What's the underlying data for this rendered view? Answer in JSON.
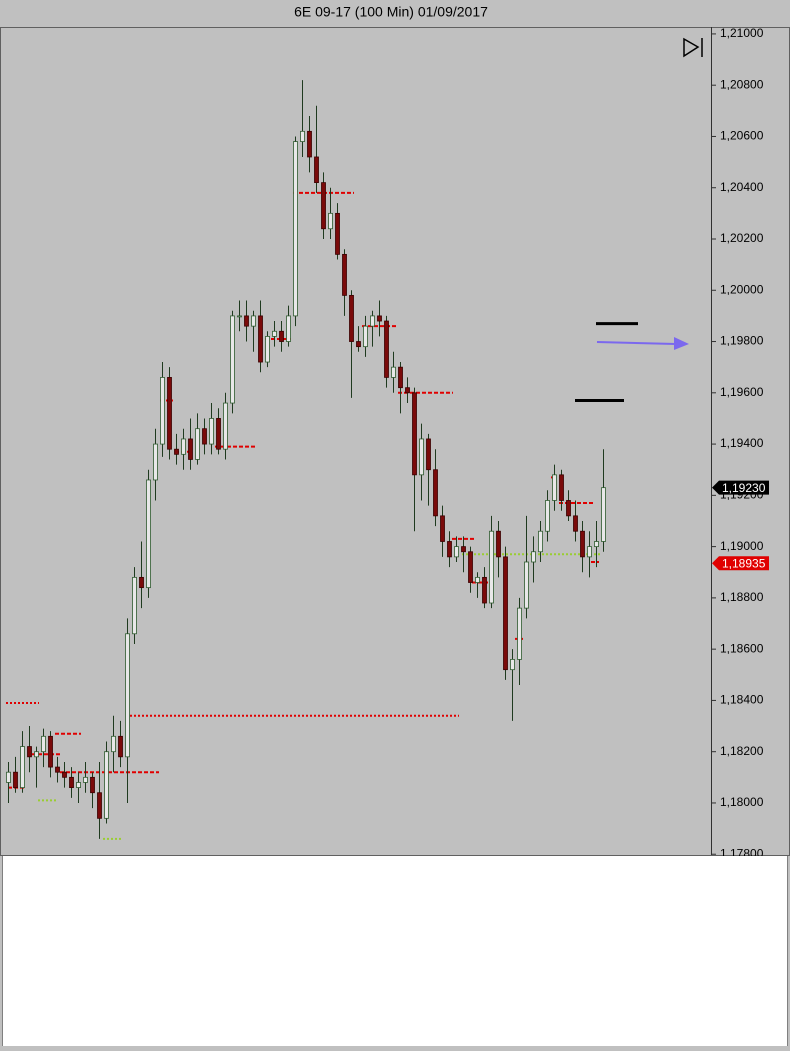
{
  "chart_data": {
    "type": "candlestick",
    "title": "6E 09-17 (100 Min)  01/09/2017",
    "ylim": [
      1.17797,
      1.21027
    ],
    "yticks": [
      {
        "value": 1.178,
        "label": "1,17800"
      },
      {
        "value": 1.18,
        "label": "1,18000"
      },
      {
        "value": 1.182,
        "label": "1,18200"
      },
      {
        "value": 1.184,
        "label": "1,18400"
      },
      {
        "value": 1.186,
        "label": "1,18600"
      },
      {
        "value": 1.188,
        "label": "1,18800"
      },
      {
        "value": 1.19,
        "label": "1,19000"
      },
      {
        "value": 1.192,
        "label": "1,19200"
      },
      {
        "value": 1.194,
        "label": "1,19400"
      },
      {
        "value": 1.196,
        "label": "1,19600"
      },
      {
        "value": 1.198,
        "label": "1,19800"
      },
      {
        "value": 1.2,
        "label": "1,20000"
      },
      {
        "value": 1.202,
        "label": "1,20200"
      },
      {
        "value": 1.204,
        "label": "1,20400"
      },
      {
        "value": 1.206,
        "label": "1,20600"
      },
      {
        "value": 1.208,
        "label": "1,20800"
      },
      {
        "value": 1.21,
        "label": "1,21000"
      }
    ],
    "up_color": "#e8e8e8",
    "down_color": "#7a0a0a",
    "wick_color": "#1f3a1f",
    "ohlc": [
      [
        1.1808,
        1.1816,
        1.18,
        1.1812
      ],
      [
        1.1812,
        1.1818,
        1.1804,
        1.1806
      ],
      [
        1.1806,
        1.1828,
        1.1804,
        1.1822
      ],
      [
        1.1822,
        1.183,
        1.1812,
        1.1818
      ],
      [
        1.1818,
        1.1822,
        1.1806,
        1.182
      ],
      [
        1.182,
        1.1829,
        1.1814,
        1.1826
      ],
      [
        1.1826,
        1.1828,
        1.181,
        1.1814
      ],
      [
        1.1814,
        1.1818,
        1.1808,
        1.1812
      ],
      [
        1.1812,
        1.1816,
        1.1806,
        1.181
      ],
      [
        1.181,
        1.1814,
        1.1802,
        1.1806
      ],
      [
        1.1806,
        1.1812,
        1.18,
        1.1808
      ],
      [
        1.1808,
        1.1816,
        1.1804,
        1.181
      ],
      [
        1.181,
        1.1812,
        1.1798,
        1.1804
      ],
      [
        1.1804,
        1.1816,
        1.1786,
        1.1794
      ],
      [
        1.1794,
        1.1824,
        1.1792,
        1.182
      ],
      [
        1.182,
        1.1834,
        1.1812,
        1.1826
      ],
      [
        1.1826,
        1.1832,
        1.1814,
        1.1818
      ],
      [
        1.1818,
        1.1872,
        1.18,
        1.1866
      ],
      [
        1.1866,
        1.1892,
        1.1862,
        1.1888
      ],
      [
        1.1888,
        1.1902,
        1.1876,
        1.1884
      ],
      [
        1.1884,
        1.193,
        1.188,
        1.1926
      ],
      [
        1.1926,
        1.1946,
        1.1918,
        1.194
      ],
      [
        1.194,
        1.1972,
        1.1935,
        1.1966
      ],
      [
        1.1966,
        1.197,
        1.1934,
        1.1938
      ],
      [
        1.1938,
        1.1944,
        1.1932,
        1.1936
      ],
      [
        1.1936,
        1.1946,
        1.193,
        1.1942
      ],
      [
        1.1942,
        1.195,
        1.193,
        1.1934
      ],
      [
        1.1934,
        1.1952,
        1.1932,
        1.1946
      ],
      [
        1.1946,
        1.195,
        1.1936,
        1.194
      ],
      [
        1.194,
        1.1956,
        1.1936,
        1.195
      ],
      [
        1.195,
        1.1954,
        1.1936,
        1.1938
      ],
      [
        1.1938,
        1.196,
        1.1934,
        1.1956
      ],
      [
        1.1956,
        1.1992,
        1.1952,
        1.199
      ],
      [
        1.199,
        1.1996,
        1.1984,
        1.199
      ],
      [
        1.199,
        1.1996,
        1.198,
        1.1986
      ],
      [
        1.1986,
        1.1992,
        1.1976,
        1.199
      ],
      [
        1.199,
        1.1996,
        1.1968,
        1.1972
      ],
      [
        1.1972,
        1.1984,
        1.197,
        1.1982
      ],
      [
        1.1982,
        1.1988,
        1.1978,
        1.1984
      ],
      [
        1.1984,
        1.1988,
        1.1976,
        1.198
      ],
      [
        1.198,
        1.1994,
        1.1978,
        1.199
      ],
      [
        1.199,
        1.206,
        1.1986,
        1.2058
      ],
      [
        1.2058,
        1.2082,
        1.2052,
        1.2062
      ],
      [
        1.2062,
        1.2068,
        1.2046,
        1.2052
      ],
      [
        1.2052,
        1.2072,
        1.2038,
        1.2042
      ],
      [
        1.2042,
        1.2046,
        1.202,
        1.2024
      ],
      [
        1.2024,
        1.204,
        1.202,
        1.203
      ],
      [
        1.203,
        1.2034,
        1.2012,
        1.2014
      ],
      [
        1.2014,
        1.2016,
        1.199,
        1.1998
      ],
      [
        1.1998,
        1.2,
        1.1958,
        1.198
      ],
      [
        1.198,
        1.1986,
        1.1976,
        1.1978
      ],
      [
        1.1978,
        1.199,
        1.1974,
        1.1986
      ],
      [
        1.1986,
        1.1992,
        1.1978,
        1.199
      ],
      [
        1.199,
        1.1996,
        1.1982,
        1.1988
      ],
      [
        1.1988,
        1.199,
        1.1962,
        1.1966
      ],
      [
        1.1966,
        1.1976,
        1.196,
        1.197
      ],
      [
        1.197,
        1.1972,
        1.1952,
        1.1962
      ],
      [
        1.1962,
        1.1966,
        1.1956,
        1.196
      ],
      [
        1.196,
        1.1962,
        1.1906,
        1.1928
      ],
      [
        1.1928,
        1.1948,
        1.1918,
        1.1942
      ],
      [
        1.1942,
        1.1944,
        1.1916,
        1.193
      ],
      [
        1.193,
        1.1938,
        1.1908,
        1.1912
      ],
      [
        1.1912,
        1.1916,
        1.1896,
        1.1902
      ],
      [
        1.1902,
        1.1906,
        1.1892,
        1.1896
      ],
      [
        1.1896,
        1.1904,
        1.1894,
        1.19
      ],
      [
        1.19,
        1.1904,
        1.189,
        1.1898
      ],
      [
        1.1898,
        1.19,
        1.1882,
        1.1886
      ],
      [
        1.1886,
        1.189,
        1.188,
        1.1888
      ],
      [
        1.1888,
        1.1892,
        1.1876,
        1.1878
      ],
      [
        1.1878,
        1.1912,
        1.1876,
        1.1906
      ],
      [
        1.1906,
        1.191,
        1.1888,
        1.1896
      ],
      [
        1.1896,
        1.19,
        1.1848,
        1.1852
      ],
      [
        1.1852,
        1.186,
        1.1832,
        1.1856
      ],
      [
        1.1856,
        1.188,
        1.1846,
        1.1876
      ],
      [
        1.1876,
        1.1912,
        1.1872,
        1.1894
      ],
      [
        1.1894,
        1.1904,
        1.1886,
        1.1898
      ],
      [
        1.1898,
        1.191,
        1.1894,
        1.1906
      ],
      [
        1.1906,
        1.1922,
        1.1902,
        1.1918
      ],
      [
        1.1918,
        1.1932,
        1.1914,
        1.1928
      ],
      [
        1.1928,
        1.193,
        1.1914,
        1.1918
      ],
      [
        1.1918,
        1.1922,
        1.191,
        1.1912
      ],
      [
        1.1912,
        1.1918,
        1.1902,
        1.1906
      ],
      [
        1.1906,
        1.191,
        1.189,
        1.1896
      ],
      [
        1.1896,
        1.1906,
        1.1888,
        1.19
      ],
      [
        1.19,
        1.191,
        1.1892,
        1.1902
      ],
      [
        1.1902,
        1.1938,
        1.1898,
        1.1923
      ]
    ],
    "levels": [
      {
        "value": 1.2038,
        "style": "dashed",
        "color": "#e00000"
      },
      {
        "value": 1.1981,
        "style": "dashed",
        "color": "#e00000"
      },
      {
        "value": 1.1986,
        "style": "dashed",
        "color": "#e00000"
      },
      {
        "value": 1.196,
        "style": "dashed",
        "color": "#e00000"
      },
      {
        "value": 1.1939,
        "style": "dashed",
        "color": "#e00000"
      },
      {
        "value": 1.1957,
        "style": "dashed",
        "color": "#e00000"
      },
      {
        "value": 1.1937,
        "style": "dashed",
        "color": "#e00000"
      },
      {
        "value": 1.1903,
        "style": "dashed",
        "color": "#e00000"
      },
      {
        "value": 1.1917,
        "style": "dashed",
        "color": "#e00000"
      },
      {
        "value": 1.1886,
        "style": "dashed",
        "color": "#e00000"
      },
      {
        "value": 1.1864,
        "style": "dashed",
        "color": "#e00000"
      },
      {
        "value": 1.1927,
        "style": "dashed",
        "color": "#e00000"
      },
      {
        "value": 1.1894,
        "style": "dashed",
        "color": "#e00000"
      },
      {
        "value": 1.1812,
        "style": "dashed",
        "color": "#e00000"
      },
      {
        "value": 1.1819,
        "style": "dashed",
        "color": "#e00000"
      },
      {
        "value": 1.1806,
        "style": "dashed",
        "color": "#e00000"
      },
      {
        "value": 1.1827,
        "style": "dashed",
        "color": "#e00000"
      },
      {
        "value": 1.1839,
        "style": "dotted",
        "color": "#e00000"
      },
      {
        "value": 1.1834,
        "style": "dotted",
        "color": "#e00000"
      },
      {
        "value": 1.1897,
        "style": "dotted",
        "color": "#9acd32"
      },
      {
        "value": 1.1801,
        "style": "dotted",
        "color": "#9acd32"
      },
      {
        "value": 1.1786,
        "style": "dotted",
        "color": "#9acd32"
      },
      {
        "value": 1.1987,
        "style": "solid",
        "color": "#000000"
      },
      {
        "value": 1.1957,
        "style": "solid",
        "color": "#000000"
      }
    ],
    "price_tags": [
      {
        "value": 1.1923,
        "label": "1,19230",
        "color": "#000000"
      },
      {
        "value": 1.18935,
        "label": "1,18935",
        "color": "#e00000"
      }
    ]
  }
}
